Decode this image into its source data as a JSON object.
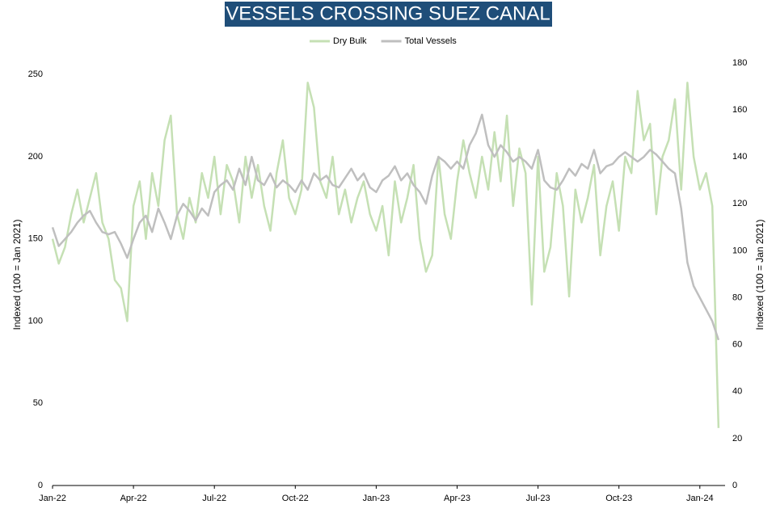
{
  "chart_data": {
    "type": "line",
    "title": "VESSELS CROSSING SUEZ CANAL",
    "y_label": "Indexed (100 = Jan 2021)",
    "y2_label": "Indexed (100 = Jan 2021)",
    "legend": "top",
    "categories": [
      "Jan-22",
      null,
      null,
      null,
      null,
      null,
      null,
      null,
      null,
      null,
      null,
      null,
      null,
      "Apr-22",
      null,
      null,
      null,
      null,
      null,
      null,
      null,
      null,
      null,
      null,
      null,
      null,
      "Jul-22",
      null,
      null,
      null,
      null,
      null,
      null,
      null,
      null,
      null,
      null,
      null,
      null,
      "Oct-22",
      null,
      null,
      null,
      null,
      null,
      null,
      null,
      null,
      null,
      null,
      null,
      null,
      "Jan-23",
      null,
      null,
      null,
      null,
      null,
      null,
      null,
      null,
      null,
      null,
      null,
      null,
      "Apr-23",
      null,
      null,
      null,
      null,
      null,
      null,
      null,
      null,
      null,
      null,
      null,
      null,
      "Jul-23",
      null,
      null,
      null,
      null,
      null,
      null,
      null,
      null,
      null,
      null,
      null,
      null,
      "Oct-23",
      null,
      null,
      null,
      null,
      null,
      null,
      null,
      null,
      null,
      null,
      null,
      null,
      "Jan-24",
      null,
      null,
      null
    ],
    "series": [
      {
        "name": "Dry Bulk",
        "color": "#c5e0b4",
        "axis": "y",
        "values": [
          150,
          135,
          145,
          165,
          180,
          160,
          175,
          190,
          160,
          150,
          125,
          120,
          100,
          170,
          185,
          150,
          190,
          170,
          210,
          225,
          165,
          150,
          175,
          160,
          190,
          175,
          200,
          165,
          195,
          185,
          160,
          200,
          175,
          195,
          170,
          155,
          190,
          210,
          175,
          165,
          180,
          245,
          230,
          185,
          175,
          200,
          165,
          180,
          160,
          175,
          185,
          165,
          155,
          170,
          140,
          185,
          160,
          175,
          195,
          150,
          130,
          140,
          200,
          165,
          150,
          185,
          210,
          190,
          175,
          200,
          180,
          215,
          185,
          225,
          170,
          205,
          190,
          110,
          200,
          130,
          145,
          190,
          170,
          115,
          180,
          160,
          175,
          195,
          140,
          170,
          185,
          155,
          200,
          190,
          240,
          210,
          220,
          165,
          200,
          210,
          235,
          180,
          245,
          200,
          180,
          190,
          170,
          35
        ]
      },
      {
        "name": "Total Vessels",
        "color": "#bfbfbf",
        "axis": "y2",
        "values": [
          110,
          102,
          105,
          108,
          112,
          115,
          117,
          112,
          108,
          107,
          108,
          103,
          97,
          105,
          112,
          115,
          108,
          118,
          112,
          105,
          115,
          120,
          117,
          113,
          118,
          115,
          125,
          128,
          130,
          126,
          135,
          128,
          140,
          130,
          128,
          133,
          127,
          130,
          128,
          125,
          130,
          126,
          133,
          130,
          132,
          128,
          127,
          131,
          135,
          130,
          133,
          127,
          125,
          130,
          132,
          136,
          130,
          133,
          128,
          125,
          120,
          132,
          140,
          138,
          135,
          138,
          135,
          145,
          150,
          158,
          145,
          140,
          145,
          142,
          138,
          140,
          138,
          135,
          143,
          130,
          127,
          126,
          130,
          135,
          132,
          137,
          135,
          143,
          133,
          136,
          137,
          140,
          142,
          140,
          138,
          140,
          143,
          141,
          138,
          135,
          133,
          118,
          95,
          85,
          80,
          75,
          70,
          62
        ]
      }
    ],
    "ylim": [
      0,
      257
    ],
    "yticks": [
      0,
      50,
      100,
      150,
      200,
      250
    ],
    "y2lim": [
      0,
      180
    ],
    "y2ticks": [
      0,
      20,
      40,
      60,
      80,
      100,
      120,
      140,
      160,
      180
    ]
  }
}
